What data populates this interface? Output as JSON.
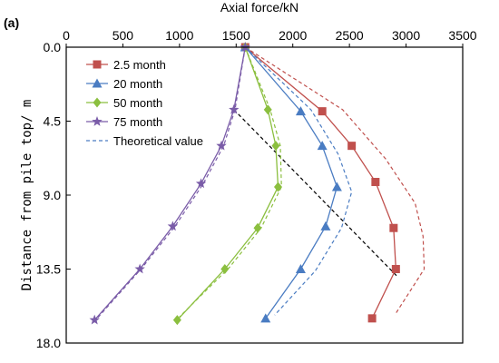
{
  "chart_data": {
    "type": "line",
    "panel_label": "(a)",
    "xlabel": "Axial force/kN",
    "ylabel": "Distance from pile top/ m",
    "xlim": [
      0,
      3500
    ],
    "ylim": [
      0,
      18
    ],
    "y_inverted": true,
    "x_axis_position": "top",
    "x_ticks": [
      0,
      500,
      1000,
      1500,
      2000,
      2500,
      3000,
      3500
    ],
    "x_tick_labels": [
      "0",
      "500",
      "1000",
      "1500",
      "2000",
      "2500",
      "3000",
      "3500"
    ],
    "y_ticks": [
      0,
      4.5,
      9,
      13.5,
      18
    ],
    "y_tick_labels": [
      "0.0",
      "4.5",
      "9.0",
      "13.5",
      "18.0"
    ],
    "legend_position": "top-left",
    "series": [
      {
        "name": "2.5 month",
        "color": "#c0504d",
        "marker": "square",
        "points": [
          [
            1580,
            0
          ],
          [
            2260,
            3.9
          ],
          [
            2520,
            6.0
          ],
          [
            2730,
            8.2
          ],
          [
            2890,
            11.0
          ],
          [
            2910,
            13.5
          ],
          [
            2700,
            16.5
          ]
        ],
        "theory": [
          [
            1580,
            0
          ],
          [
            2440,
            3.8
          ],
          [
            2820,
            6.8
          ],
          [
            3080,
            9.5
          ],
          [
            3150,
            11.5
          ],
          [
            3160,
            13.5
          ],
          [
            2900,
            16.3
          ]
        ]
      },
      {
        "name": "20 month",
        "color": "#4a7cc2",
        "marker": "triangle",
        "points": [
          [
            1580,
            0
          ],
          [
            2070,
            3.9
          ],
          [
            2260,
            6.0
          ],
          [
            2390,
            8.5
          ],
          [
            2290,
            10.9
          ],
          [
            2070,
            13.5
          ],
          [
            1760,
            16.5
          ]
        ],
        "theory": [
          [
            1580,
            0
          ],
          [
            2160,
            3.8
          ],
          [
            2400,
            6.5
          ],
          [
            2520,
            8.8
          ],
          [
            2430,
            11.0
          ],
          [
            2200,
            13.6
          ],
          [
            1840,
            16.3
          ]
        ]
      },
      {
        "name": "50 month",
        "color": "#8bbf3f",
        "marker": "diamond",
        "points": [
          [
            1580,
            0
          ],
          [
            1780,
            3.8
          ],
          [
            1850,
            6.0
          ],
          [
            1870,
            8.5
          ],
          [
            1690,
            11.0
          ],
          [
            1400,
            13.5
          ],
          [
            980,
            16.6
          ]
        ],
        "theory": [
          [
            1580,
            0
          ],
          [
            1800,
            3.8
          ],
          [
            1890,
            6.0
          ],
          [
            1900,
            8.5
          ],
          [
            1720,
            11.0
          ],
          [
            1440,
            13.4
          ],
          [
            1000,
            16.4
          ]
        ]
      },
      {
        "name": "75 month",
        "color": "#7a5ca8",
        "marker": "star",
        "points": [
          [
            1580,
            0
          ],
          [
            1480,
            3.8
          ],
          [
            1370,
            6.0
          ],
          [
            1190,
            8.3
          ],
          [
            940,
            10.9
          ],
          [
            650,
            13.5
          ],
          [
            250,
            16.6
          ]
        ],
        "theory": [
          [
            1580,
            0
          ],
          [
            1490,
            3.8
          ],
          [
            1390,
            6.0
          ],
          [
            1210,
            8.3
          ],
          [
            960,
            10.9
          ],
          [
            660,
            13.5
          ],
          [
            260,
            16.6
          ]
        ]
      }
    ],
    "theoretical_label": "Theoretical value",
    "black_dashed_line": [
      [
        1480,
        3.8
      ],
      [
        2930,
        14.0
      ]
    ]
  }
}
